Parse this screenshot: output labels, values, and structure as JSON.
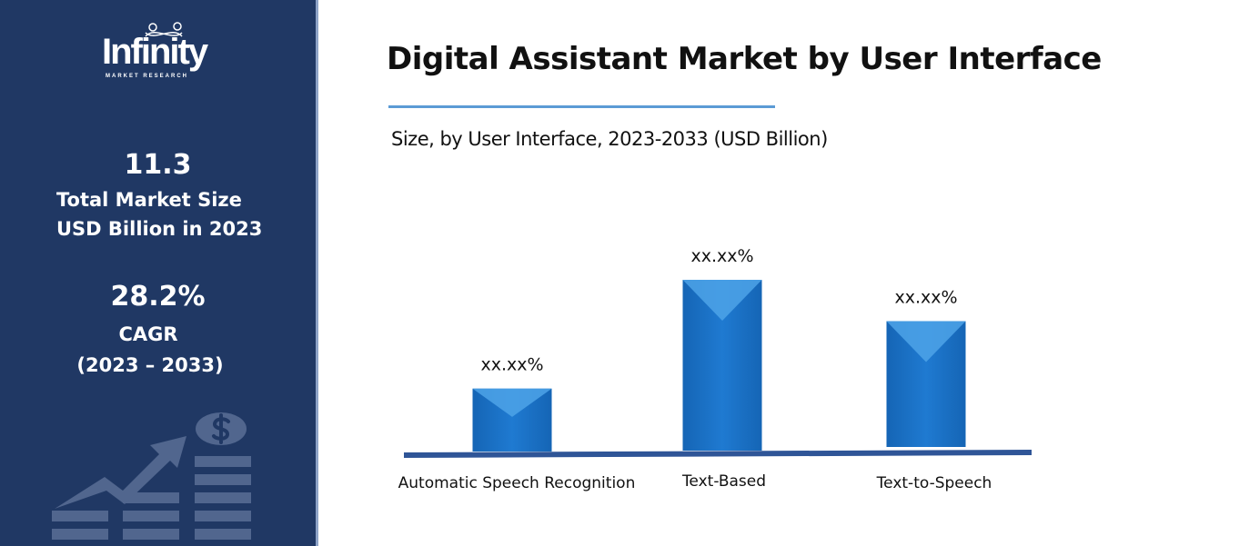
{
  "sidebar": {
    "logo_text": "Infinity",
    "logo_subtext": "MARKET RESEARCH",
    "market_size_value": "11.3",
    "market_size_label_1": "Total Market Size",
    "market_size_label_2": "USD Billion in 2023",
    "cagr_value": "28.2%",
    "cagr_label": "CAGR",
    "cagr_period": "(2023 – 2033)",
    "illustration_icon": "growth-chart-dollar-icon"
  },
  "chart_data": {
    "type": "bar",
    "title": "Digital Assistant Market by User Interface",
    "subtitle": "Size, by User Interface, 2023-2033 (USD Billion)",
    "categories": [
      "Automatic Speech Recognition",
      "Text-Based",
      "Text-to-Speech"
    ],
    "values": [
      70,
      190,
      140
    ],
    "data_labels": [
      "xx.xx%",
      "xx.xx%",
      "xx.xx%"
    ],
    "xlabel": "",
    "ylabel": "",
    "grid": false,
    "colors": {
      "bar": "#1f77c9",
      "bar_light": "#4ea3e8",
      "baseline": "#2f5597",
      "title_rule": "#5b9bd5",
      "sidebar": "#203864"
    }
  }
}
